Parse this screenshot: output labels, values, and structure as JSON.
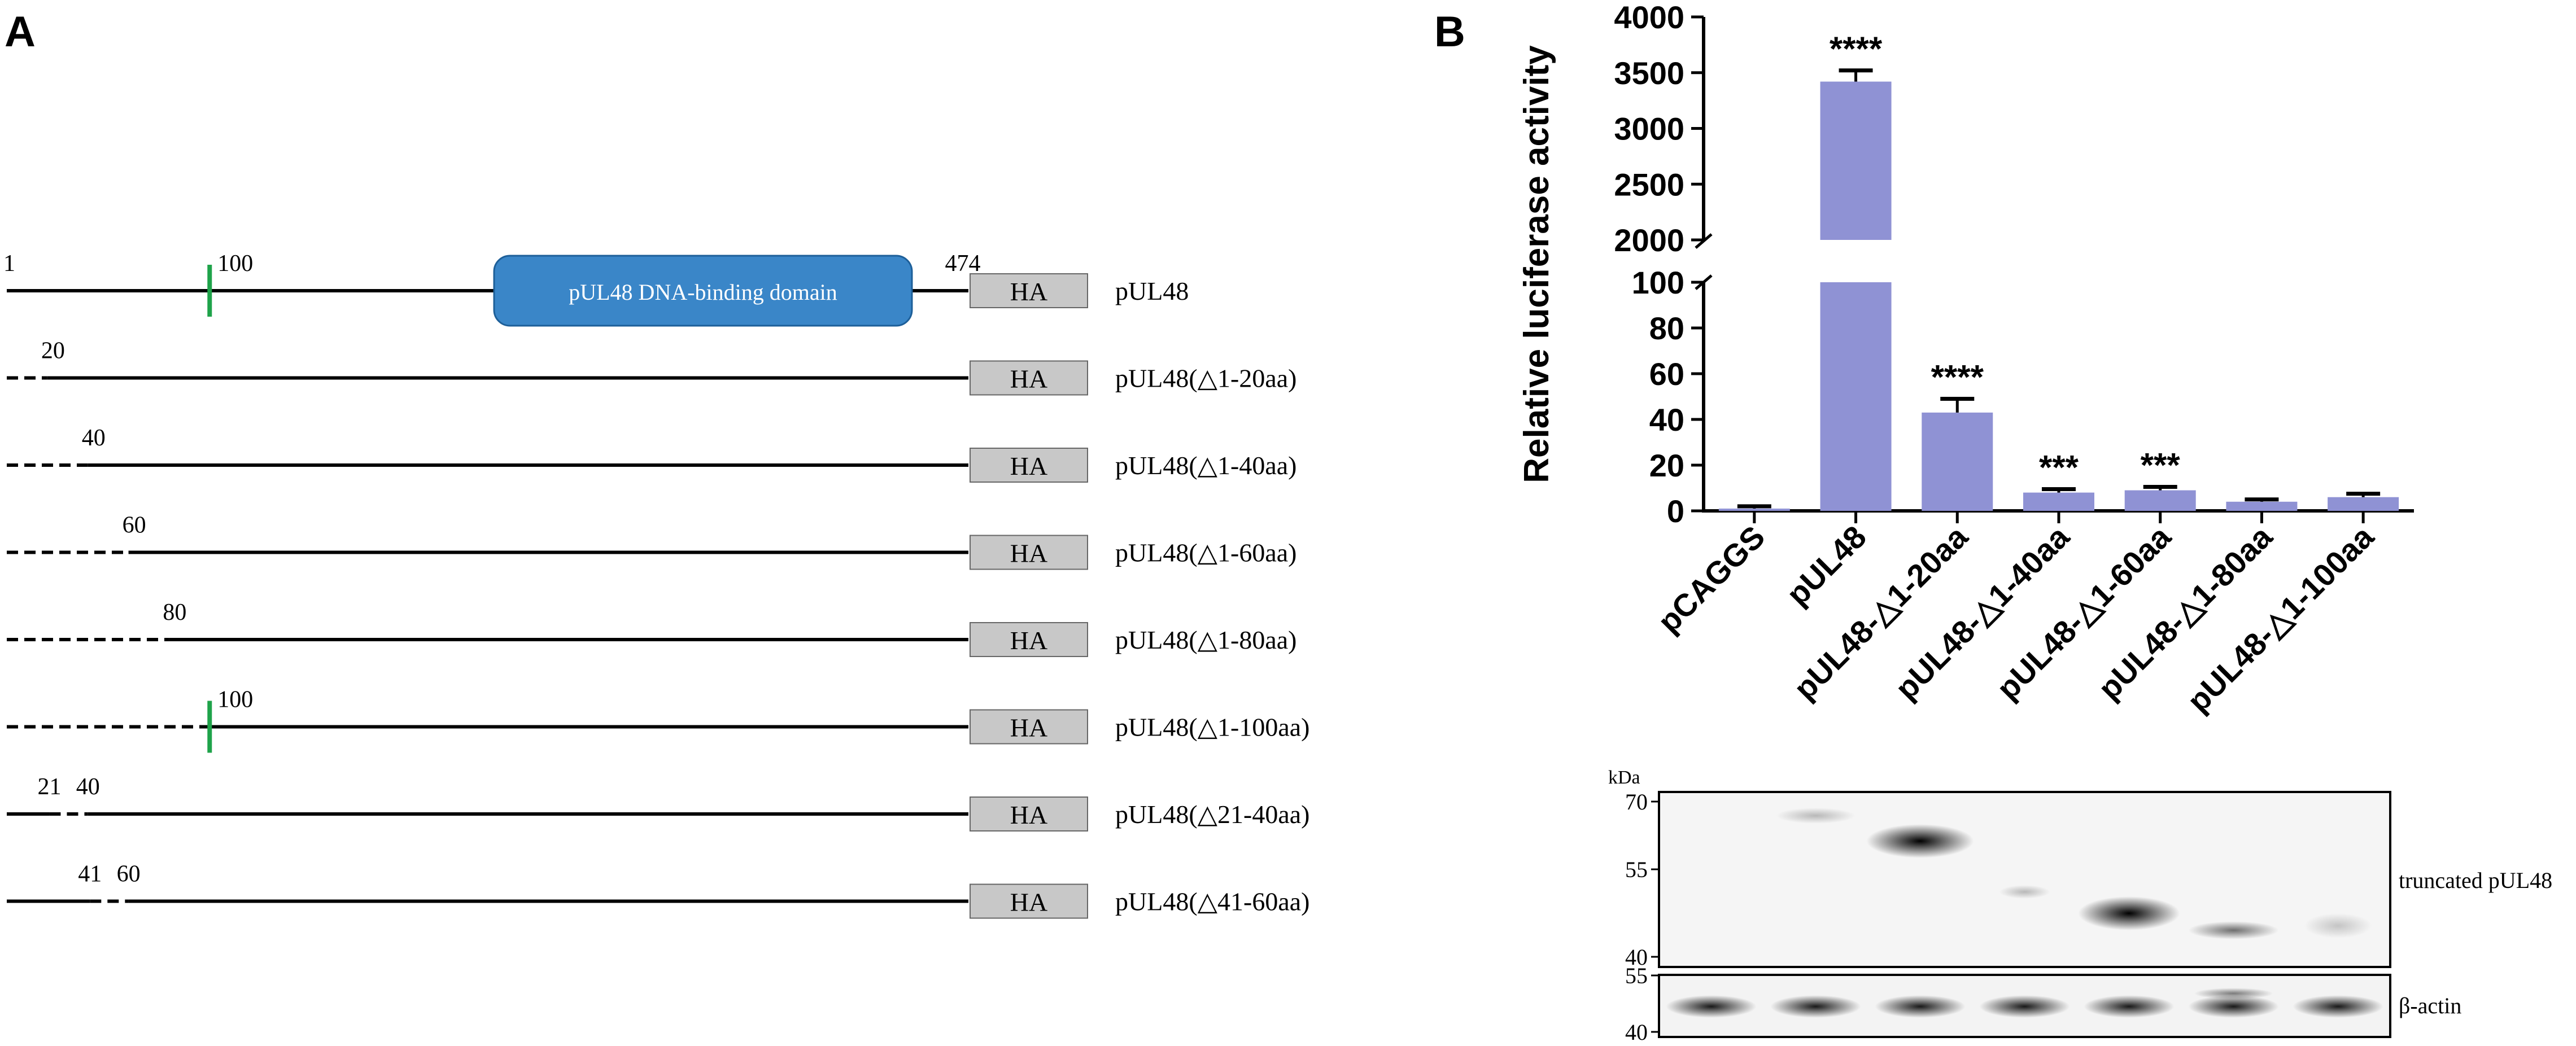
{
  "panel_a": {
    "label": "A",
    "constructs": [
      {
        "name": "pUL48",
        "segments": [
          [
            "solid",
            0,
            474
          ]
        ],
        "ticks": [
          100
        ],
        "labels": [
          {
            "pos": 0,
            "text": "1"
          },
          {
            "pos": 100,
            "text": "100"
          },
          {
            "pos": 474,
            "text": "474"
          }
        ],
        "domain": true
      },
      {
        "name": "pUL48(△1-20aa)",
        "segments": [
          [
            "dashed",
            0,
            20
          ],
          [
            "solid",
            20,
            474
          ]
        ],
        "ticks": [],
        "labels": [
          {
            "pos": 20,
            "text": "20"
          }
        ],
        "domain": false
      },
      {
        "name": "pUL48(△1-40aa)",
        "segments": [
          [
            "dashed",
            0,
            40
          ],
          [
            "solid",
            40,
            474
          ]
        ],
        "ticks": [],
        "labels": [
          {
            "pos": 40,
            "text": "40"
          }
        ],
        "domain": false
      },
      {
        "name": "pUL48(△1-60aa)",
        "segments": [
          [
            "dashed",
            0,
            60
          ],
          [
            "solid",
            60,
            474
          ]
        ],
        "ticks": [],
        "labels": [
          {
            "pos": 60,
            "text": "60"
          }
        ],
        "domain": false
      },
      {
        "name": "pUL48(△1-80aa)",
        "segments": [
          [
            "dashed",
            0,
            80
          ],
          [
            "solid",
            80,
            474
          ]
        ],
        "ticks": [],
        "labels": [
          {
            "pos": 80,
            "text": "80"
          }
        ],
        "domain": false
      },
      {
        "name": "pUL48(△1-100aa)",
        "segments": [
          [
            "dashed",
            0,
            100
          ],
          [
            "solid",
            100,
            474
          ]
        ],
        "ticks": [
          100
        ],
        "labels": [
          {
            "pos": 100,
            "text": "100"
          }
        ],
        "domain": false
      },
      {
        "name": "pUL48(△21-40aa)",
        "segments": [
          [
            "solid",
            0,
            21
          ],
          [
            "dashed",
            21,
            40
          ],
          [
            "solid",
            40,
            474
          ]
        ],
        "ticks": [],
        "labels": [
          {
            "pos": 21,
            "text": "21"
          },
          {
            "pos": 40,
            "text": "40"
          }
        ],
        "domain": false
      },
      {
        "name": "pUL48(△41-60aa)",
        "segments": [
          [
            "solid",
            0,
            41
          ],
          [
            "dashed",
            41,
            60
          ],
          [
            "solid",
            60,
            474
          ]
        ],
        "ticks": [],
        "labels": [
          {
            "pos": 41,
            "text": "41"
          },
          {
            "pos": 60,
            "text": "60"
          }
        ],
        "domain": false
      }
    ],
    "tag_label": "HA",
    "domain_label": "pUL48 DNA-binding domain",
    "colors": {
      "domain_fill": "#3a86c8",
      "tick": "#1fa34a",
      "tag_fill": "#c8c8c8"
    }
  },
  "panel_b": {
    "label": "B",
    "chart_data": {
      "type": "bar",
      "categories": [
        "pCAGGS",
        "pUL48",
        "pUL48-△1-20aa",
        "pUL48-△1-40aa",
        "pUL48-△1-60aa",
        "pUL48-△1-80aa",
        "pUL48-△1-100aa"
      ],
      "values": [
        1,
        3420,
        43,
        8,
        9,
        4,
        6
      ],
      "errors": [
        1,
        100,
        6,
        1.5,
        1.5,
        1,
        1.5
      ],
      "significance": [
        "",
        "****",
        "****",
        "***",
        "***",
        "",
        ""
      ],
      "ylabel": "Relative luciferase activity",
      "axis_break": {
        "lower": [
          0,
          100
        ],
        "upper": [
          2000,
          4000
        ]
      },
      "yticks_lower": [
        0,
        20,
        40,
        60,
        80,
        100
      ],
      "yticks_upper": [
        2000,
        2500,
        3000,
        3500,
        4000
      ],
      "bar_color": "#8f92d4"
    },
    "blot": {
      "unit": "kDa",
      "top_markers": [
        "70",
        "55",
        "40"
      ],
      "bottom_markers": [
        "55",
        "40"
      ],
      "top_label": "truncated pUL48",
      "bottom_label": "β-actin"
    }
  }
}
